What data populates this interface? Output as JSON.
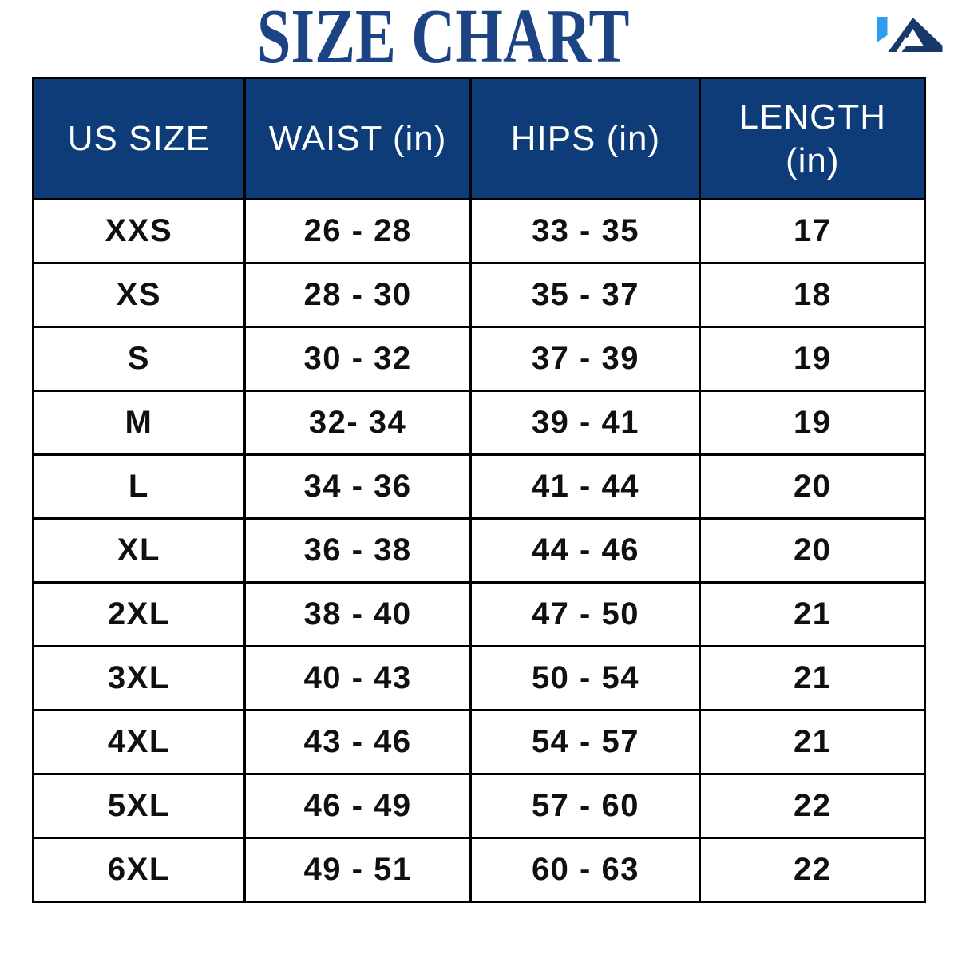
{
  "page": {
    "title": "SIZE CHART"
  },
  "colors": {
    "background": "#FFFFFF",
    "title_text": "#1C4383",
    "header_bg": "#0D3C79",
    "header_text": "#FFFFFF",
    "grid_line": "#000000",
    "cell_text": "#101010",
    "logo_light_blue": "#2E9CEF",
    "logo_navy": "#17396A"
  },
  "logo": {
    "name": "ia-brand-logo"
  },
  "table": {
    "header_labels": [
      "US SIZE",
      "WAIST (in)",
      "HIPS (in)",
      "LENGTH\n(in)"
    ]
  },
  "chart_data": {
    "type": "table",
    "title": "SIZE CHART",
    "columns": [
      "US SIZE",
      "WAIST (in)",
      "HIPS (in)",
      "LENGTH (in)"
    ],
    "rows": [
      [
        "XXS",
        "26 - 28",
        "33 - 35",
        "17"
      ],
      [
        "XS",
        "28 - 30",
        "35 - 37",
        "18"
      ],
      [
        "S",
        "30 - 32",
        "37 - 39",
        "19"
      ],
      [
        "M",
        "32- 34",
        "39 - 41",
        "19"
      ],
      [
        "L",
        "34 - 36",
        "41 - 44",
        "20"
      ],
      [
        "XL",
        "36 - 38",
        "44 - 46",
        "20"
      ],
      [
        "2XL",
        "38 - 40",
        "47 - 50",
        "21"
      ],
      [
        "3XL",
        "40 - 43",
        "50 - 54",
        "21"
      ],
      [
        "4XL",
        "43 - 46",
        "54 - 57",
        "21"
      ],
      [
        "5XL",
        "46 - 49",
        "57 - 60",
        "22"
      ],
      [
        "6XL",
        "49 - 51",
        "60 - 63",
        "22"
      ]
    ]
  }
}
